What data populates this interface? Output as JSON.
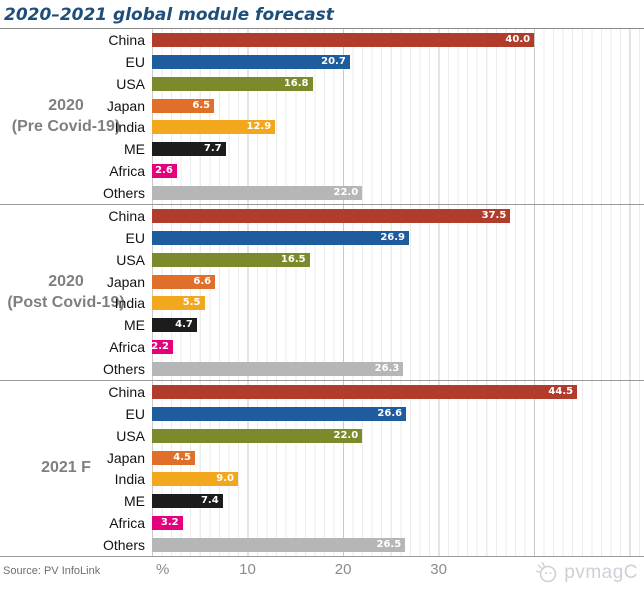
{
  "title": "2020–2021 global module forecast",
  "source": "Source: PV InfoLink",
  "watermark": "pvmagC",
  "axis": {
    "zero_label": "%",
    "ticks": [
      10,
      20,
      30
    ]
  },
  "chart_data": {
    "type": "bar",
    "orientation": "horizontal",
    "title": "2020–2021 global module forecast",
    "xlabel": "%",
    "xlim": [
      0,
      51.5
    ],
    "x_ticks": [
      10,
      20,
      30
    ],
    "grid": true,
    "categories": [
      "China",
      "EU",
      "USA",
      "Japan",
      "India",
      "ME",
      "Africa",
      "Others"
    ],
    "series": [
      {
        "id": "2020-pre",
        "name": "2020 (Pre Covid-19)",
        "label_lines": [
          "2020",
          "(Pre Covid-19)"
        ],
        "values": [
          40.0,
          20.7,
          16.8,
          6.5,
          12.9,
          7.7,
          2.6,
          22.0
        ]
      },
      {
        "id": "2020-post",
        "name": "2020 (Post Covid-19)",
        "label_lines": [
          "2020",
          "(Post Covid-19)"
        ],
        "values": [
          37.5,
          26.9,
          16.5,
          6.6,
          5.5,
          4.7,
          2.2,
          26.3
        ]
      },
      {
        "id": "2021f",
        "name": "2021 F",
        "label_lines": [
          "2021 F"
        ],
        "values": [
          44.5,
          26.6,
          22.0,
          4.5,
          9.0,
          7.4,
          3.2,
          26.5
        ]
      }
    ],
    "bar_colors": {
      "China": "#b23c2c",
      "EU": "#1e5d9d",
      "USA": "#7d8a2b",
      "Japan": "#e06f2a",
      "India": "#f3a71d",
      "ME": "#1c1c1c",
      "Africa": "#e5007e",
      "Others": "#b4b6b8"
    },
    "value_label_color": "#ffffff",
    "accent_title_color": "#1e4e79"
  }
}
